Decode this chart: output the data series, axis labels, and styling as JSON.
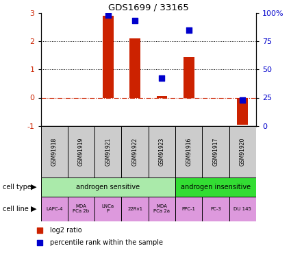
{
  "title": "GDS1699 / 33165",
  "samples": [
    "GSM91918",
    "GSM91919",
    "GSM91921",
    "GSM91922",
    "GSM91923",
    "GSM91916",
    "GSM91917",
    "GSM91920"
  ],
  "log2_ratio": [
    0.0,
    0.0,
    2.9,
    2.1,
    0.05,
    1.45,
    0.0,
    -0.95
  ],
  "pct_rank": [
    null,
    null,
    98,
    93,
    42,
    85,
    null,
    23
  ],
  "cell_type_groups": [
    {
      "label": "androgen sensitive",
      "start": 0,
      "end": 5,
      "color": "#aaeaaa"
    },
    {
      "label": "androgen insensitive",
      "start": 5,
      "end": 8,
      "color": "#33dd33"
    }
  ],
  "cell_lines": [
    "LAPC-4",
    "MDA\nPCa 2b",
    "LNCa\nP",
    "22Rv1",
    "MDA\nPCa 2a",
    "PPC-1",
    "PC-3",
    "DU 145"
  ],
  "cell_line_color": "#dd99dd",
  "sample_bg_color": "#cccccc",
  "bar_color": "#cc2200",
  "dot_color": "#0000cc",
  "ylim_left": [
    -1,
    3
  ],
  "ylim_right": [
    0,
    100
  ],
  "yticks_left": [
    -1,
    0,
    1,
    2,
    3
  ],
  "yticks_right": [
    0,
    25,
    50,
    75,
    100
  ],
  "ytick_labels_right": [
    "0",
    "25",
    "50",
    "75",
    "100%"
  ],
  "ytick_labels_left": [
    "-1",
    "0",
    "1",
    "2",
    "3"
  ],
  "legend_bar_label": "log2 ratio",
  "legend_dot_label": "percentile rank within the sample",
  "cell_type_label": "cell type",
  "cell_line_label": "cell line"
}
